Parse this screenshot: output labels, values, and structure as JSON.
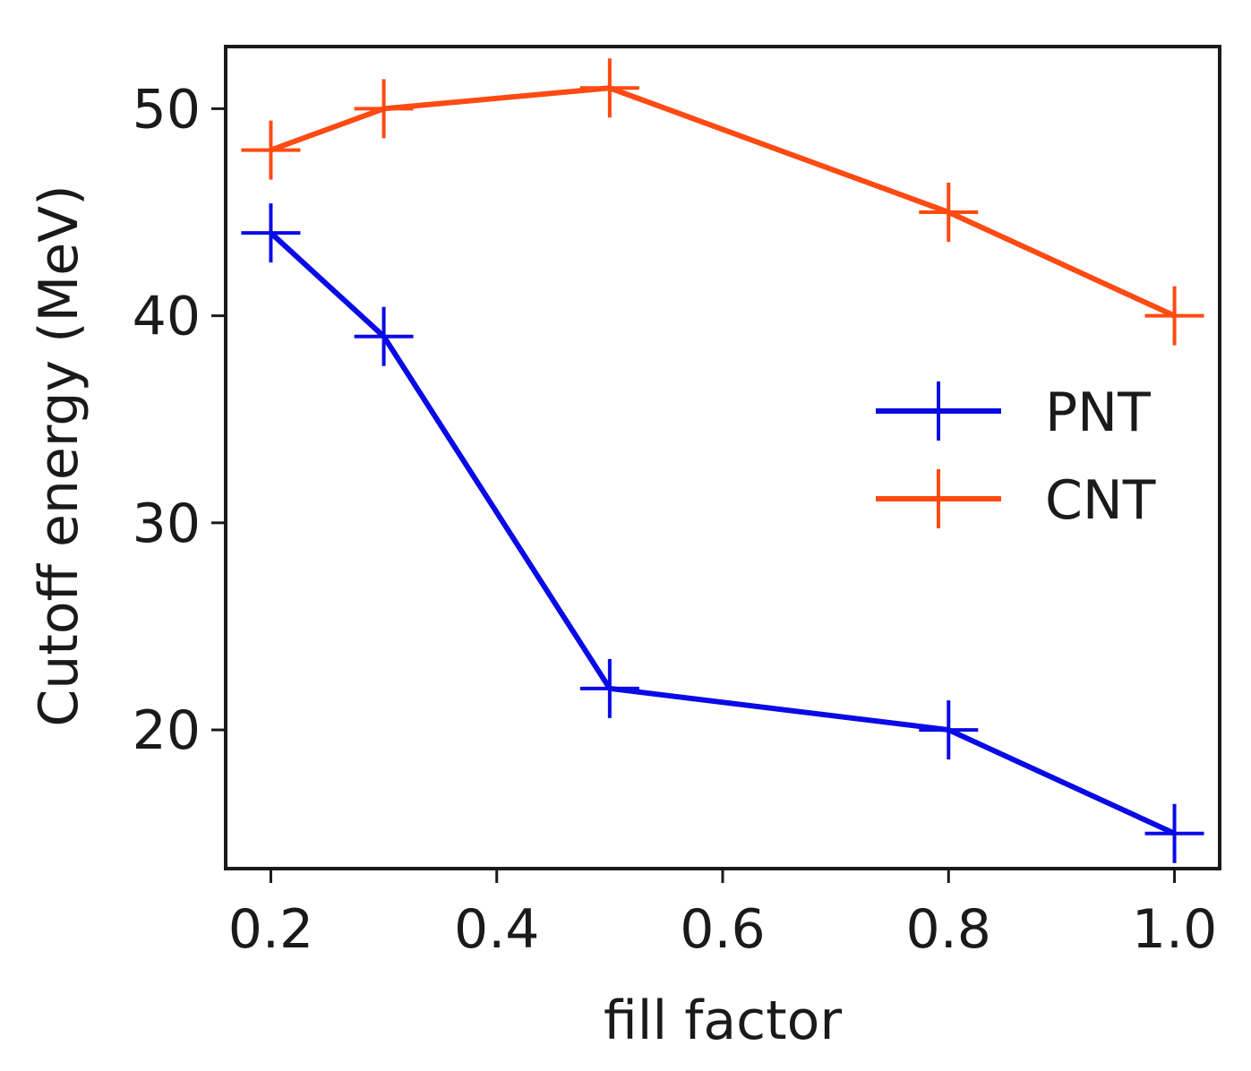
{
  "chart_data": {
    "type": "line",
    "title": "",
    "xlabel": "fill factor",
    "ylabel": "Cutoff energy (MeV)",
    "xlim": [
      0.16,
      1.04
    ],
    "ylim": [
      13.3,
      53.0
    ],
    "xticks": [
      0.2,
      0.4,
      0.6,
      0.8,
      1.0
    ],
    "xtick_labels": [
      "0.2",
      "0.4",
      "0.6",
      "0.8",
      "1.0"
    ],
    "yticks": [
      20,
      30,
      40,
      50
    ],
    "ytick_labels": [
      "20",
      "30",
      "40",
      "50"
    ],
    "grid": false,
    "legend_position": "center-right",
    "marker": "plus",
    "series": [
      {
        "name": "PNT",
        "color": "#0a0ae6",
        "x": [
          0.2,
          0.3,
          0.5,
          0.8,
          1.0
        ],
        "y": [
          44,
          39,
          22,
          20,
          15
        ]
      },
      {
        "name": "CNT",
        "color": "#ff4a12",
        "x": [
          0.2,
          0.3,
          0.5,
          0.8,
          1.0
        ],
        "y": [
          48,
          50,
          51,
          45,
          40
        ]
      }
    ]
  }
}
